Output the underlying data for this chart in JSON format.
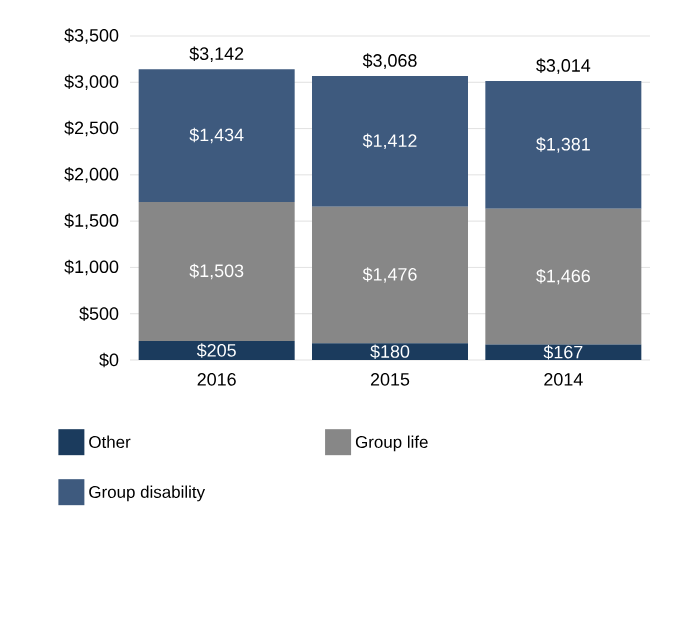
{
  "chart_data": {
    "type": "bar",
    "stacked": true,
    "categories": [
      "2016",
      "2015",
      "2014"
    ],
    "series": [
      {
        "name": "Other",
        "color": "#1b3b5d",
        "values": [
          205,
          180,
          167
        ],
        "value_labels": [
          "$205",
          "$180",
          "$167"
        ]
      },
      {
        "name": "Group life",
        "color": "#878787",
        "values": [
          1503,
          1476,
          1466
        ],
        "value_labels": [
          "$1,503",
          "$1,476",
          "$1,466"
        ]
      },
      {
        "name": "Group disability",
        "color": "#3e5a7e",
        "values": [
          1434,
          1412,
          1381
        ],
        "value_labels": [
          "$1,434",
          "$1,412",
          "$1,381"
        ]
      }
    ],
    "totals": [
      "$3,142",
      "$3,068",
      "$3,014"
    ],
    "ylim": [
      0,
      3500
    ],
    "yticks": [
      {
        "value": 0,
        "label": "$0"
      },
      {
        "value": 500,
        "label": "$500"
      },
      {
        "value": 1000,
        "label": "$1,000"
      },
      {
        "value": 1500,
        "label": "$1,500"
      },
      {
        "value": 2000,
        "label": "$2,000"
      },
      {
        "value": 2500,
        "label": "$2,500"
      },
      {
        "value": 3000,
        "label": "$3,000"
      },
      {
        "value": 3500,
        "label": "$3,500"
      }
    ],
    "grid": "y",
    "legend": "bottom"
  }
}
